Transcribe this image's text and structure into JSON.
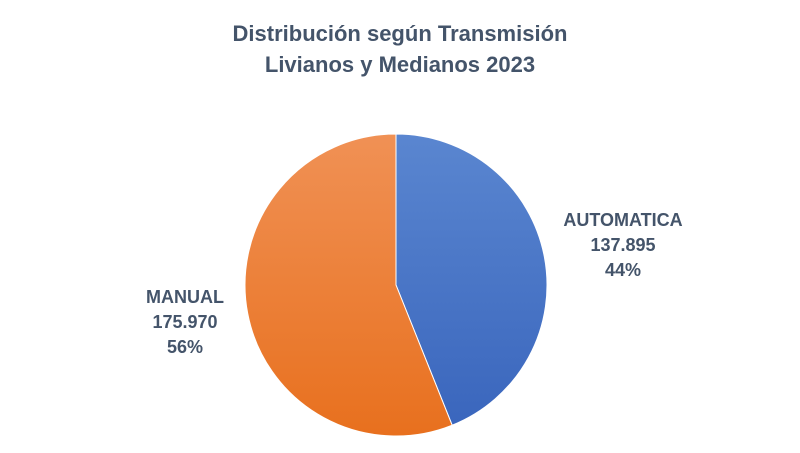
{
  "chart_data": {
    "type": "pie",
    "title": "Distribución según Transmisión",
    "subtitle": "Livianos y Medianos 2023",
    "slices": [
      {
        "label": "AUTOMATICA",
        "value": 137895,
        "value_label": "137.895",
        "percent_label": "44%",
        "color": "#4472c4"
      },
      {
        "label": "MANUAL",
        "value": 175970,
        "value_label": "175.970",
        "percent_label": "56%",
        "color": "#ed7d31"
      }
    ],
    "legend": "none",
    "data_labels": "outside"
  }
}
